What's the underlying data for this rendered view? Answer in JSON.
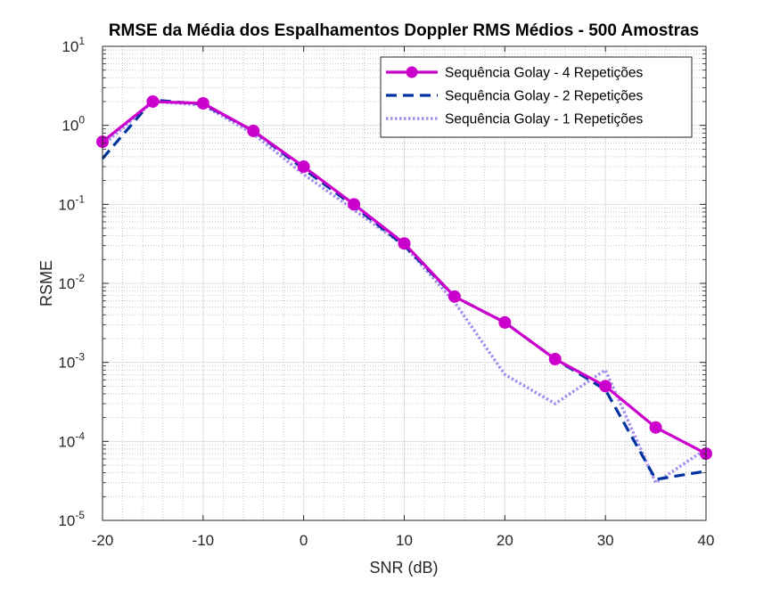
{
  "chart_data": {
    "type": "line",
    "title": "RMSE da Média dos Espalhamentos Doppler RMS Médios - 500 Amostras",
    "xlabel": "SNR (dB)",
    "ylabel": "RSME",
    "xlim": [
      -20,
      40
    ],
    "ylim": [
      1e-05,
      10
    ],
    "yscale": "log",
    "grid": true,
    "minor_grid": true,
    "legend_position": "top-right",
    "x_ticks": [
      -20,
      -10,
      0,
      10,
      20,
      30,
      40
    ],
    "x_tick_labels": [
      "-20",
      "-10",
      "0",
      "10",
      "20",
      "30",
      "40"
    ],
    "y_tick_exponents": [
      -5,
      -4,
      -3,
      -2,
      -1,
      0,
      1
    ],
    "y_tick_base": "10",
    "x": [
      -20,
      -15,
      -10,
      -5,
      0,
      5,
      10,
      15,
      20,
      25,
      30,
      35,
      40
    ],
    "series": [
      {
        "name": "Sequência Golay - 4 Repetições",
        "color": "#cc00cc",
        "style": "solid",
        "marker": "circle",
        "values": [
          0.62,
          2.0,
          1.9,
          0.85,
          0.3,
          0.1,
          0.032,
          0.0068,
          0.0032,
          0.0011,
          0.0005,
          0.00015,
          7e-05
        ]
      },
      {
        "name": "Sequência Golay - 2 Repetições",
        "color": "#0033a0",
        "style": "dashed",
        "marker": "none",
        "values": [
          0.38,
          2.1,
          1.85,
          0.85,
          0.28,
          0.095,
          0.03,
          0.0068,
          0.0032,
          0.0011,
          0.00045,
          3.3e-05,
          4.2e-05
        ]
      },
      {
        "name": "Sequência Golay - 1 Repetições",
        "color": "#a58cf0",
        "style": "dotted",
        "marker": "none",
        "values": [
          0.55,
          2.0,
          1.8,
          0.78,
          0.24,
          0.085,
          0.03,
          0.0058,
          0.0007,
          0.0003,
          0.0008,
          3e-05,
          8e-05
        ]
      }
    ]
  }
}
